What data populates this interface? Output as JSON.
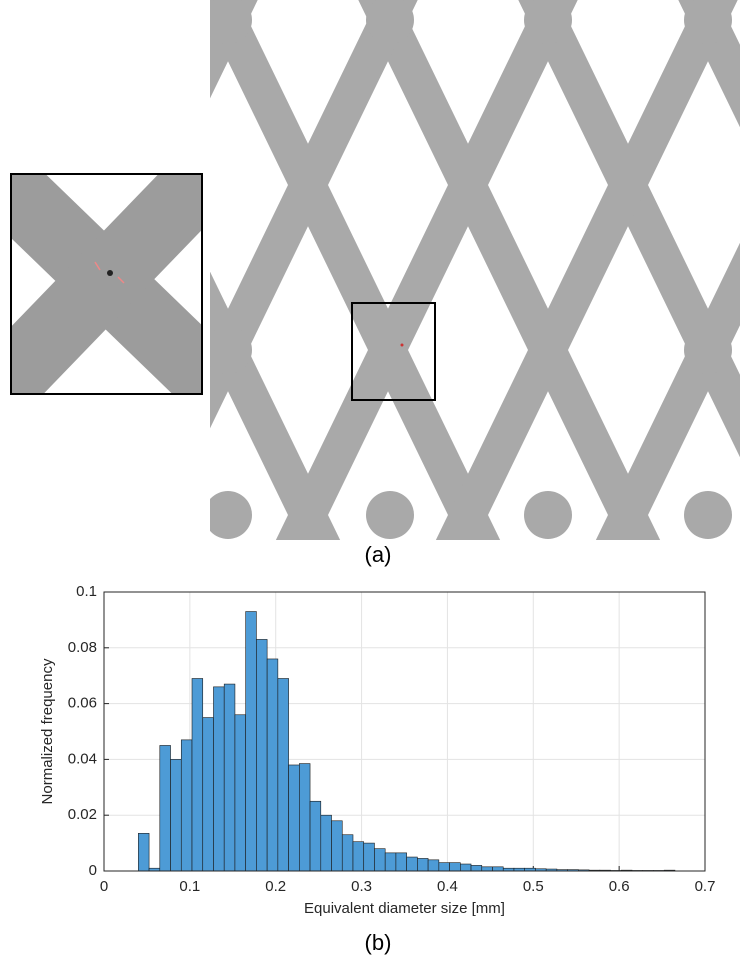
{
  "captions": [
    "(a)",
    "(b)"
  ],
  "chart_data": {
    "type": "histogram",
    "xlabel": "Equivalent diameter size [mm]",
    "ylabel": "Normalized frequency",
    "bins": [
      0.04,
      0.0525,
      0.065,
      0.0775,
      0.09,
      0.1025,
      0.115,
      0.1275,
      0.14,
      0.1525,
      0.165,
      0.1775,
      0.19,
      0.2025,
      0.215,
      0.2275,
      0.24,
      0.2525,
      0.265,
      0.2775,
      0.29,
      0.3025,
      0.315,
      0.3275,
      0.34,
      0.3525,
      0.365,
      0.3775,
      0.39,
      0.4025,
      0.415,
      0.4275,
      0.44,
      0.4525,
      0.465,
      0.4775,
      0.49,
      0.5025,
      0.515,
      0.5275,
      0.54,
      0.5525,
      0.565,
      0.5775,
      0.59,
      0.6025,
      0.615,
      0.6275,
      0.64,
      0.6525,
      0.665
    ],
    "values": [
      0.0135,
      0.001,
      0.045,
      0.04,
      0.047,
      0.069,
      0.055,
      0.066,
      0.067,
      0.056,
      0.093,
      0.083,
      0.076,
      0.069,
      0.038,
      0.0385,
      0.025,
      0.02,
      0.018,
      0.013,
      0.0105,
      0.01,
      0.008,
      0.0065,
      0.0065,
      0.005,
      0.0045,
      0.004,
      0.003,
      0.003,
      0.0025,
      0.002,
      0.0015,
      0.0015,
      0.001,
      0.001,
      0.001,
      0.0008,
      0.0007,
      0.0005,
      0.0005,
      0.0004,
      0.0003,
      0.0003,
      0.0002,
      0.0003,
      0.0002,
      0.0002,
      0.0002,
      0.0003
    ],
    "color": "#4d9bd6",
    "xlim": [
      0,
      0.7
    ],
    "ylim": [
      0,
      0.1
    ],
    "xticks": [
      0,
      0.1,
      0.2,
      0.3,
      0.4,
      0.5,
      0.6,
      0.7
    ],
    "yticks": [
      0,
      0.02,
      0.04,
      0.06,
      0.08,
      0.1
    ],
    "grid": true
  }
}
